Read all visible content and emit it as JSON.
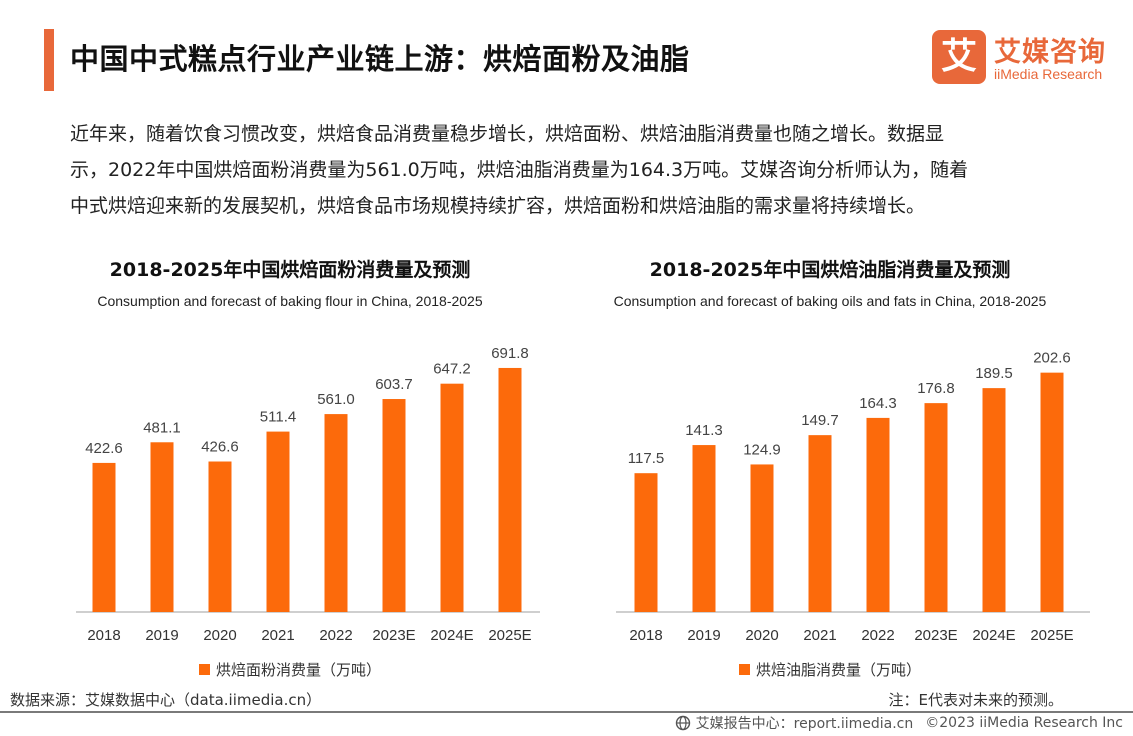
{
  "header": {
    "title": "中国中式糕点行业产业链上游：烘焙面粉及油脂",
    "logo_mark": "艾",
    "logo_cn": "艾媒咨询",
    "logo_en": "iiMedia Research"
  },
  "intro": {
    "line1": "近年来，随着饮食习惯改变，烘焙食品消费量稳步增长，烘焙面粉、烘焙油脂消费量也随之增长。数据显",
    "line2": "示，2022年中国烘焙面粉消费量为561.0万吨，烘焙油脂消费量为164.3万吨。艾媒咨询分析师认为，随着",
    "line3": "中式烘焙迎来新的发展契机，烘焙食品市场规模持续扩容，烘焙面粉和烘焙油脂的需求量将持续增长。"
  },
  "colors": {
    "accent": "#e8683a",
    "bar": "#fc6a0b"
  },
  "chart_data": [
    {
      "type": "bar",
      "title": "2018-2025年中国烘焙面粉消费量及预测",
      "subtitle": "Consumption and forecast of baking flour in China, 2018-2025",
      "categories": [
        "2018",
        "2019",
        "2020",
        "2021",
        "2022",
        "2023E",
        "2024E",
        "2025E"
      ],
      "series": [
        {
          "name": "烘焙面粉消费量（万吨）",
          "values": [
            422.6,
            481.1,
            426.6,
            511.4,
            561.0,
            603.7,
            647.2,
            691.8
          ]
        }
      ],
      "data_labels": [
        "422.6",
        "481.1",
        "426.6",
        "511.4",
        "561.0",
        "603.7",
        "647.2",
        "691.8"
      ],
      "ylim": [
        0,
        720
      ],
      "legend": "bottom"
    },
    {
      "type": "bar",
      "title": "2018-2025年中国烘焙油脂消费量及预测",
      "subtitle": "Consumption and forecast of baking oils and fats in China, 2018-2025",
      "categories": [
        "2018",
        "2019",
        "2020",
        "2021",
        "2022",
        "2023E",
        "2024E",
        "2025E"
      ],
      "series": [
        {
          "name": "烘焙油脂消费量（万吨）",
          "values": [
            117.5,
            141.3,
            124.9,
            149.7,
            164.3,
            176.8,
            189.5,
            202.6
          ]
        }
      ],
      "data_labels": [
        "117.5",
        "141.3",
        "124.9",
        "149.7",
        "164.3",
        "176.8",
        "189.5",
        "202.6"
      ],
      "ylim": [
        0,
        215
      ],
      "legend": "bottom"
    }
  ],
  "source": "数据来源：艾媒数据中心（data.iimedia.cn）",
  "note": "注：E代表对未来的预测。",
  "footer": {
    "report": "艾媒报告中心：report.iimedia.cn",
    "copyright": "©2023  iiMedia Research  Inc"
  }
}
